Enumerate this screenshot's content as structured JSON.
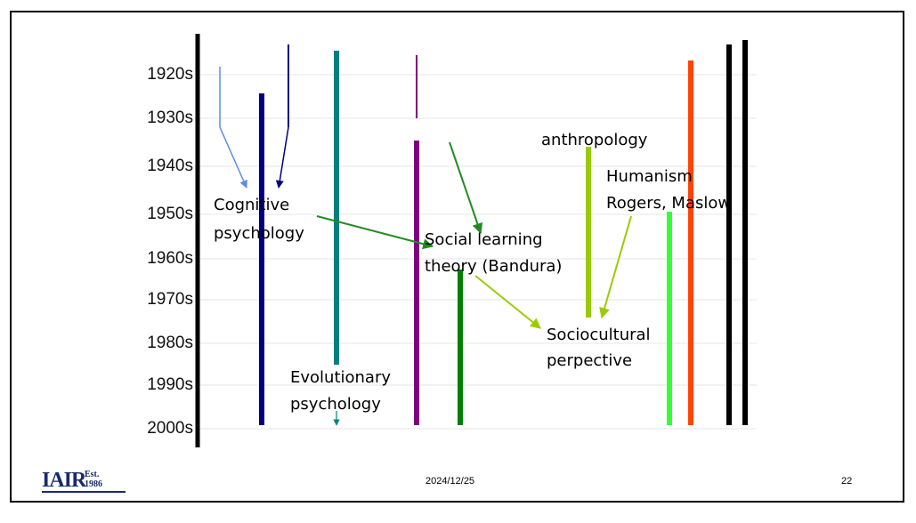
{
  "timeline": {
    "decades": [
      "1920s",
      "1930s",
      "1940s",
      "1950s",
      "1960s",
      "1970s",
      "1980s",
      "1990s",
      "2000s"
    ]
  },
  "labels": {
    "cognitive": [
      "Cognitive",
      "psychology"
    ],
    "social_learning": [
      "Social learning",
      "theory (Bandura)"
    ],
    "anthropology": "anthropology",
    "humanism": [
      "Humanism",
      "Rogers, Maslow"
    ],
    "sociocultural": [
      "Sociocultural",
      "perpective"
    ],
    "evolutionary": [
      "Evolutionary",
      "psychology"
    ]
  },
  "colors": {
    "axis": "#000000",
    "navy": "#000080",
    "teal": "#008080",
    "purple": "#800080",
    "dark_green": "#008000",
    "yellow_green": "#99cc00",
    "bright_green": "#33ff33",
    "orange_red": "#ff4500",
    "cornflower": "#5b8ee6",
    "logo_blue": "#1a2a6b"
  },
  "footer": {
    "date": "2024/12/25",
    "page_number": "22",
    "logo_text": "IAIR",
    "logo_est": "Est.",
    "logo_year": "1986"
  }
}
